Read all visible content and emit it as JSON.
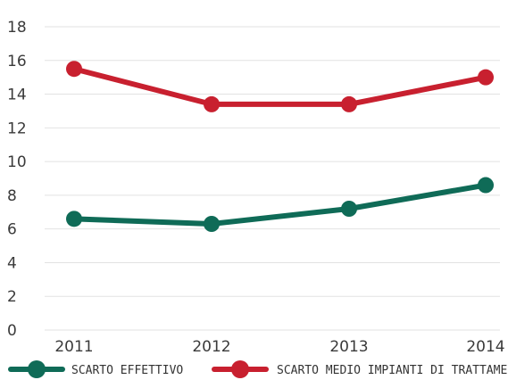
{
  "chart_data": {
    "type": "line",
    "title": "",
    "xlabel": "",
    "ylabel": "",
    "x": [
      "2011",
      "2012",
      "2013",
      "2014"
    ],
    "ylim": [
      0,
      18
    ],
    "yticks": [
      0,
      2,
      4,
      6,
      8,
      10,
      12,
      14,
      16,
      18
    ],
    "grid": "horizontal",
    "legend": "bottom",
    "series": [
      {
        "name": "SCARTO EFFETTIVO",
        "values": [
          6.6,
          6.3,
          7.2,
          8.6
        ],
        "color": "#0f6b57"
      },
      {
        "name": "SCARTO MEDIO IMPIANTI DI TRATTAMENTO",
        "values": [
          15.5,
          13.4,
          13.4,
          15.0
        ],
        "color": "#c8202f"
      }
    ]
  }
}
